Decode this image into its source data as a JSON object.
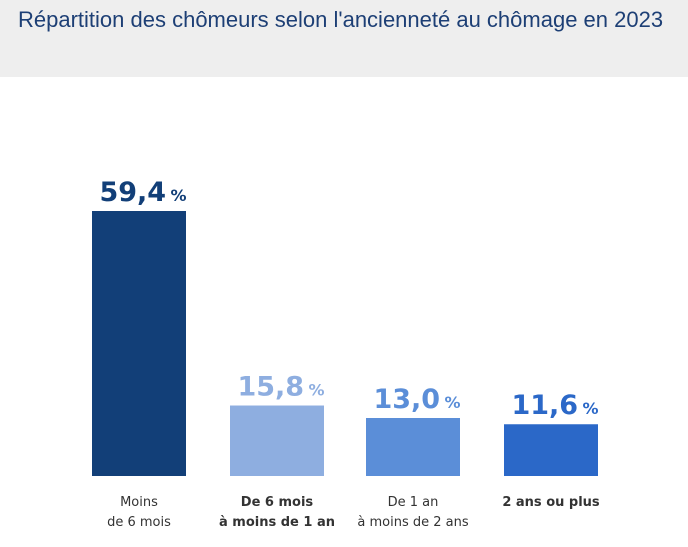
{
  "title": "Répartition des chômeurs selon l'ancienneté au chômage en 2023",
  "chart_data": {
    "type": "bar",
    "title": "Répartition des chômeurs selon l'ancienneté au chômage en 2023",
    "categories": [
      [
        "Moins",
        "de 6 mois"
      ],
      [
        "De 6 mois",
        "à moins de 1 an"
      ],
      [
        "De 1 an",
        "à moins de 2 ans"
      ],
      [
        "2 ans ou plus"
      ]
    ],
    "category_bold": [
      false,
      true,
      false,
      true
    ],
    "values": [
      59.4,
      15.8,
      13.0,
      11.6
    ],
    "value_labels": [
      "59,4",
      "15,8",
      "13,0",
      "11,6"
    ],
    "unit": "%",
    "colors": [
      "#123f78",
      "#8eaee0",
      "#5b8ed8",
      "#2b68c8"
    ],
    "xlabel": "",
    "ylabel": "",
    "ylim": [
      0,
      59.4
    ],
    "grid": false,
    "legend": "none"
  }
}
